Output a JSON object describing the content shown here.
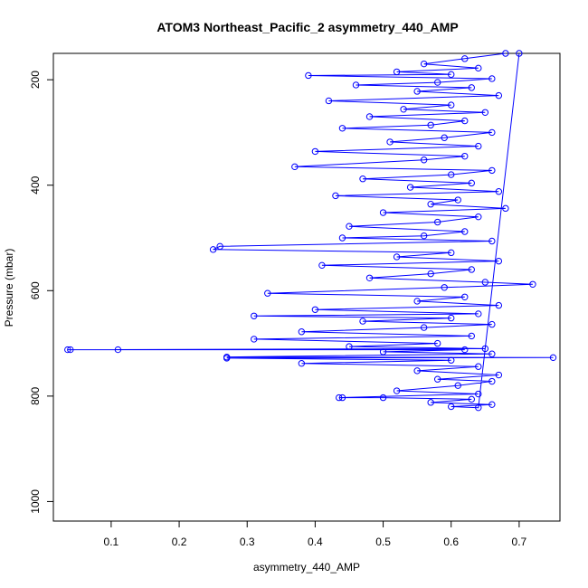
{
  "chart_data": {
    "type": "scatter",
    "title": "ATOM3 Northeast_Pacific_2 asymmetry_440_AMP",
    "xlabel": "asymmetry_440_AMP",
    "ylabel": "Pressure (mbar)",
    "xlim": [
      0.015,
      0.76
    ],
    "ylim": [
      1037,
      150
    ],
    "y_reversed": true,
    "x_ticks": [
      "0.1",
      "0.2",
      "0.3",
      "0.4",
      "0.5",
      "0.6",
      "0.7"
    ],
    "y_ticks": [
      "200",
      "400",
      "600",
      "800",
      "1000"
    ],
    "grid": false,
    "legend": "none",
    "series": [
      {
        "style": "points and connecting lines, open circles",
        "color": "#0000ff",
        "points": [
          [
            0.68,
            150
          ],
          [
            0.62,
            160
          ],
          [
            0.56,
            170
          ],
          [
            0.64,
            178
          ],
          [
            0.52,
            185
          ],
          [
            0.6,
            190
          ],
          [
            0.39,
            192
          ],
          [
            0.66,
            198
          ],
          [
            0.58,
            205
          ],
          [
            0.46,
            210
          ],
          [
            0.63,
            215
          ],
          [
            0.55,
            222
          ],
          [
            0.67,
            230
          ],
          [
            0.42,
            240
          ],
          [
            0.6,
            248
          ],
          [
            0.53,
            256
          ],
          [
            0.65,
            262
          ],
          [
            0.48,
            270
          ],
          [
            0.62,
            278
          ],
          [
            0.57,
            286
          ],
          [
            0.44,
            292
          ],
          [
            0.66,
            300
          ],
          [
            0.59,
            310
          ],
          [
            0.51,
            318
          ],
          [
            0.64,
            326
          ],
          [
            0.4,
            336
          ],
          [
            0.62,
            345
          ],
          [
            0.56,
            352
          ],
          [
            0.37,
            365
          ],
          [
            0.66,
            372
          ],
          [
            0.6,
            380
          ],
          [
            0.47,
            388
          ],
          [
            0.63,
            396
          ],
          [
            0.54,
            404
          ],
          [
            0.67,
            412
          ],
          [
            0.43,
            420
          ],
          [
            0.61,
            428
          ],
          [
            0.57,
            436
          ],
          [
            0.68,
            444
          ],
          [
            0.5,
            452
          ],
          [
            0.64,
            460
          ],
          [
            0.58,
            470
          ],
          [
            0.45,
            478
          ],
          [
            0.62,
            488
          ],
          [
            0.56,
            496
          ],
          [
            0.44,
            500
          ],
          [
            0.66,
            506
          ],
          [
            0.26,
            516
          ],
          [
            0.25,
            522
          ],
          [
            0.6,
            528
          ],
          [
            0.52,
            536
          ],
          [
            0.67,
            544
          ],
          [
            0.41,
            552
          ],
          [
            0.63,
            560
          ],
          [
            0.57,
            568
          ],
          [
            0.48,
            576
          ],
          [
            0.65,
            584
          ],
          [
            0.72,
            588
          ],
          [
            0.59,
            594
          ],
          [
            0.33,
            605
          ],
          [
            0.62,
            612
          ],
          [
            0.55,
            620
          ],
          [
            0.67,
            628
          ],
          [
            0.4,
            636
          ],
          [
            0.64,
            644
          ],
          [
            0.31,
            648
          ],
          [
            0.6,
            652
          ],
          [
            0.47,
            658
          ],
          [
            0.66,
            664
          ],
          [
            0.56,
            670
          ],
          [
            0.38,
            678
          ],
          [
            0.63,
            686
          ],
          [
            0.31,
            692
          ],
          [
            0.58,
            700
          ],
          [
            0.45,
            706
          ],
          [
            0.65,
            710
          ],
          [
            0.036,
            712
          ],
          [
            0.04,
            712
          ],
          [
            0.11,
            712
          ],
          [
            0.62,
            712
          ],
          [
            0.5,
            716
          ],
          [
            0.66,
            720
          ],
          [
            0.27,
            726
          ],
          [
            0.75,
            727
          ],
          [
            0.27,
            728
          ],
          [
            0.6,
            732
          ],
          [
            0.38,
            738
          ],
          [
            0.64,
            744
          ],
          [
            0.55,
            752
          ],
          [
            0.67,
            760
          ],
          [
            0.58,
            768
          ],
          [
            0.66,
            772
          ],
          [
            0.61,
            780
          ],
          [
            0.52,
            790
          ],
          [
            0.64,
            796
          ],
          [
            0.435,
            803
          ],
          [
            0.44,
            803
          ],
          [
            0.5,
            803
          ],
          [
            0.63,
            806
          ],
          [
            0.57,
            812
          ],
          [
            0.66,
            816
          ],
          [
            0.6,
            820
          ],
          [
            0.64,
            822
          ],
          [
            0.7,
            150
          ]
        ]
      }
    ]
  }
}
